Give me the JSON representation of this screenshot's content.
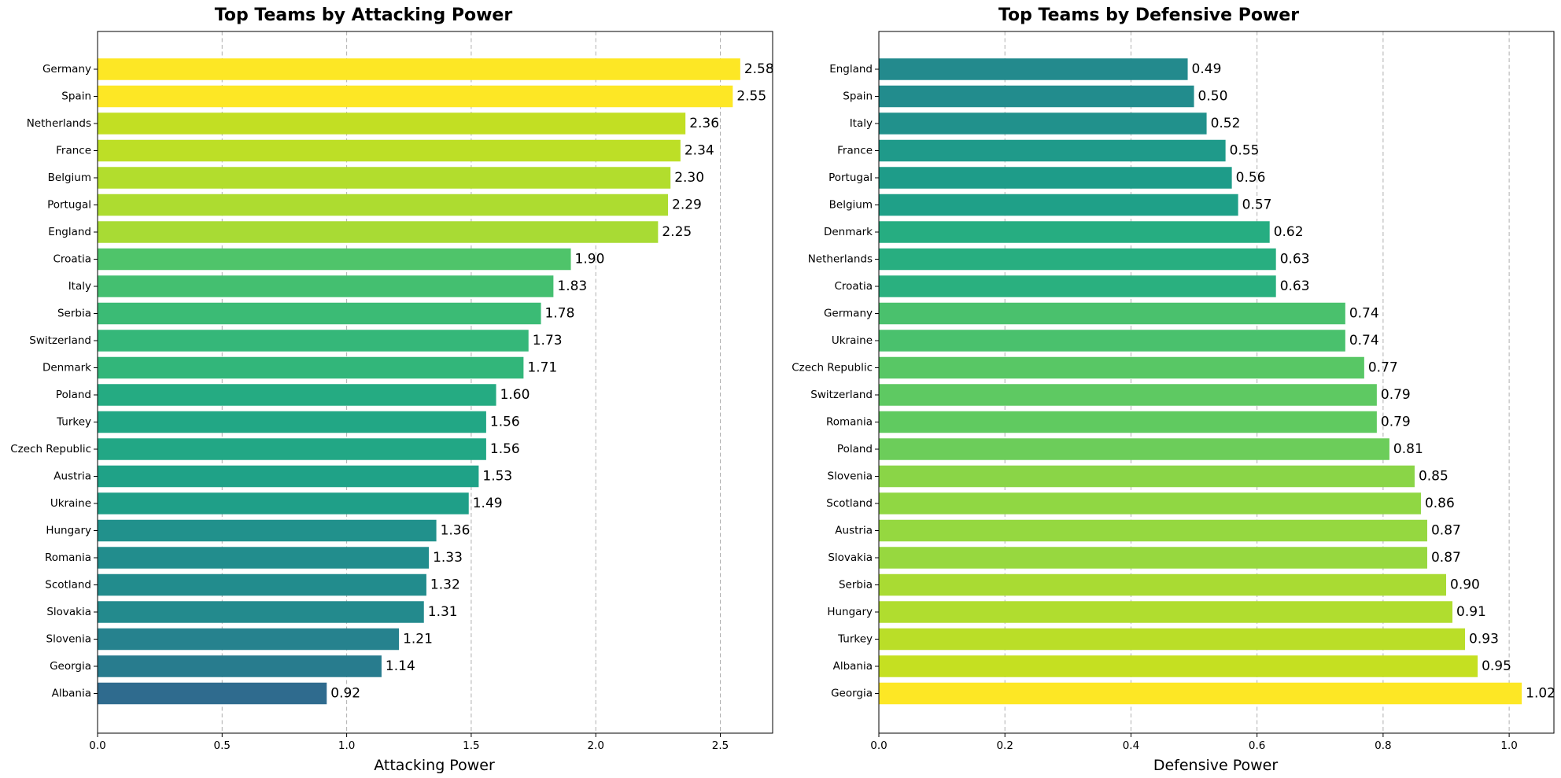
{
  "chart_data": [
    {
      "type": "bar",
      "orientation": "horizontal",
      "title": "Top Teams by Attacking Power",
      "xlabel": "Attacking Power",
      "ylabel": "",
      "xlim": [
        0,
        2.71
      ],
      "xticks": [
        "0.0",
        "0.5",
        "1.0",
        "1.5",
        "2.0",
        "2.5"
      ],
      "grid": "x-dashed",
      "colormap": "viridis",
      "categories": [
        "Germany",
        "Spain",
        "Netherlands",
        "France",
        "Belgium",
        "Portugal",
        "England",
        "Croatia",
        "Italy",
        "Serbia",
        "Switzerland",
        "Denmark",
        "Poland",
        "Turkey",
        "Czech Republic",
        "Austria",
        "Ukraine",
        "Hungary",
        "Romania",
        "Scotland",
        "Slovakia",
        "Slovenia",
        "Georgia",
        "Albania"
      ],
      "values": [
        2.58,
        2.55,
        2.36,
        2.34,
        2.3,
        2.29,
        2.25,
        1.9,
        1.83,
        1.78,
        1.73,
        1.71,
        1.6,
        1.56,
        1.56,
        1.53,
        1.49,
        1.36,
        1.33,
        1.32,
        1.31,
        1.21,
        1.14,
        0.92
      ],
      "value_labels": [
        "2.58",
        "2.55",
        "2.36",
        "2.34",
        "2.30",
        "2.29",
        "2.25",
        "1.90",
        "1.83",
        "1.78",
        "1.73",
        "1.71",
        "1.60",
        "1.56",
        "1.56",
        "1.53",
        "1.49",
        "1.36",
        "1.33",
        "1.32",
        "1.31",
        "1.21",
        "1.14",
        "0.92"
      ],
      "colors": [
        "#fde725",
        "#fde725",
        "#c2df23",
        "#bddf26",
        "#b2dd2d",
        "#addc30",
        "#a8db34",
        "#4fc46a",
        "#44bf70",
        "#3bbb75",
        "#35b779",
        "#32b67a",
        "#25ab82",
        "#22a785",
        "#22a785",
        "#1fa287",
        "#1f9f88",
        "#21918c",
        "#228d8d",
        "#228c8d",
        "#238a8d",
        "#26828e",
        "#287c8e",
        "#2f6b8e"
      ]
    },
    {
      "type": "bar",
      "orientation": "horizontal",
      "title": "Top Teams by Defensive Power",
      "xlabel": "Defensive Power",
      "ylabel": "",
      "xlim": [
        0,
        1.071
      ],
      "xticks": [
        "0.0",
        "0.2",
        "0.4",
        "0.6",
        "0.8",
        "1.0"
      ],
      "grid": "x-dashed",
      "colormap": "viridis",
      "categories": [
        "England",
        "Spain",
        "Italy",
        "France",
        "Portugal",
        "Belgium",
        "Denmark",
        "Netherlands",
        "Croatia",
        "Germany",
        "Ukraine",
        "Czech Republic",
        "Switzerland",
        "Romania",
        "Poland",
        "Slovenia",
        "Scotland",
        "Austria",
        "Slovakia",
        "Serbia",
        "Hungary",
        "Turkey",
        "Albania",
        "Georgia"
      ],
      "values": [
        0.49,
        0.5,
        0.52,
        0.55,
        0.56,
        0.57,
        0.62,
        0.63,
        0.63,
        0.74,
        0.74,
        0.77,
        0.79,
        0.79,
        0.81,
        0.85,
        0.86,
        0.87,
        0.87,
        0.9,
        0.91,
        0.93,
        0.95,
        1.02
      ],
      "value_labels": [
        "0.49",
        "0.50",
        "0.52",
        "0.55",
        "0.56",
        "0.57",
        "0.62",
        "0.63",
        "0.63",
        "0.74",
        "0.74",
        "0.77",
        "0.79",
        "0.79",
        "0.81",
        "0.85",
        "0.86",
        "0.87",
        "0.87",
        "0.90",
        "0.91",
        "0.93",
        "0.95",
        "1.02"
      ],
      "colors": [
        "#238a8d",
        "#228c8d",
        "#21918c",
        "#1f9a8a",
        "#1e9c89",
        "#1fa088",
        "#26ad81",
        "#28ae80",
        "#2ab07f",
        "#4ac16d",
        "#4ac16d",
        "#58c765",
        "#5ec962",
        "#60ca60",
        "#6ccd5a",
        "#8ad547",
        "#90d743",
        "#95d840",
        "#97d83f",
        "#a9db33",
        "#b0dd2f",
        "#bade28",
        "#c5e021",
        "#fde725"
      ]
    }
  ]
}
